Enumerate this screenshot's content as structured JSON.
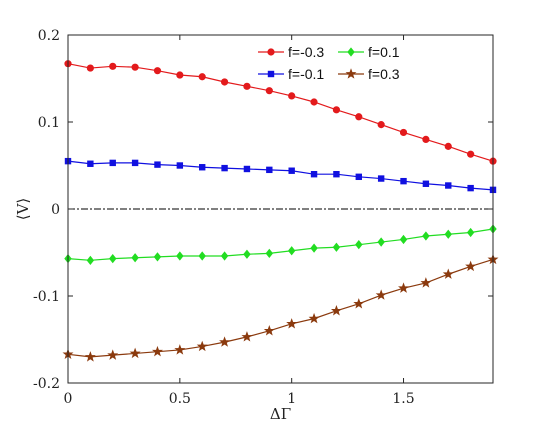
{
  "chart_data": {
    "type": "line",
    "xlabel": "ΔΓ",
    "ylabel": "⟨V⟩",
    "xlim": [
      0,
      1.9
    ],
    "ylim": [
      -0.2,
      0.2
    ],
    "x_ticks": [
      0,
      0.5,
      1,
      1.5
    ],
    "x_tick_labels": [
      "0",
      "0.5",
      "1",
      "1.5"
    ],
    "y_ticks": [
      0.2,
      0.1,
      0,
      -0.1,
      -0.2
    ],
    "y_tick_labels": [
      "0.2",
      "0.1",
      "0",
      "-0.1",
      "-0.2"
    ],
    "reference_line": {
      "y": 0,
      "style": "dash-dot",
      "color": "#000000"
    },
    "grid": false,
    "legend_position": "top-right",
    "x": [
      0,
      0.1,
      0.2,
      0.3,
      0.4,
      0.5,
      0.6,
      0.7,
      0.8,
      0.9,
      1.0,
      1.1,
      1.2,
      1.3,
      1.4,
      1.5,
      1.6,
      1.7,
      1.8,
      1.9
    ],
    "series": [
      {
        "name": "f=-0.3",
        "color": "#e31a1c",
        "marker": "circle",
        "values": [
          0.167,
          0.162,
          0.164,
          0.163,
          0.159,
          0.154,
          0.152,
          0.146,
          0.141,
          0.136,
          0.13,
          0.123,
          0.114,
          0.106,
          0.097,
          0.088,
          0.08,
          0.072,
          0.063,
          0.055
        ]
      },
      {
        "name": "f=-0.1",
        "color": "#1010e0",
        "marker": "square",
        "values": [
          0.055,
          0.052,
          0.053,
          0.053,
          0.051,
          0.05,
          0.048,
          0.047,
          0.046,
          0.045,
          0.044,
          0.04,
          0.04,
          0.037,
          0.035,
          0.032,
          0.029,
          0.027,
          0.024,
          0.022
        ]
      },
      {
        "name": "f=0.1",
        "color": "#22dd22",
        "marker": "diamond",
        "values": [
          -0.057,
          -0.059,
          -0.057,
          -0.056,
          -0.055,
          -0.054,
          -0.054,
          -0.054,
          -0.052,
          -0.051,
          -0.048,
          -0.045,
          -0.044,
          -0.041,
          -0.038,
          -0.035,
          -0.031,
          -0.029,
          -0.027,
          -0.023
        ]
      },
      {
        "name": "f=0.3",
        "color": "#8b3a0e",
        "marker": "star",
        "values": [
          -0.167,
          -0.17,
          -0.168,
          -0.166,
          -0.164,
          -0.162,
          -0.158,
          -0.153,
          -0.147,
          -0.14,
          -0.132,
          -0.126,
          -0.117,
          -0.109,
          -0.099,
          -0.091,
          -0.085,
          -0.075,
          -0.066,
          -0.058
        ]
      }
    ]
  }
}
